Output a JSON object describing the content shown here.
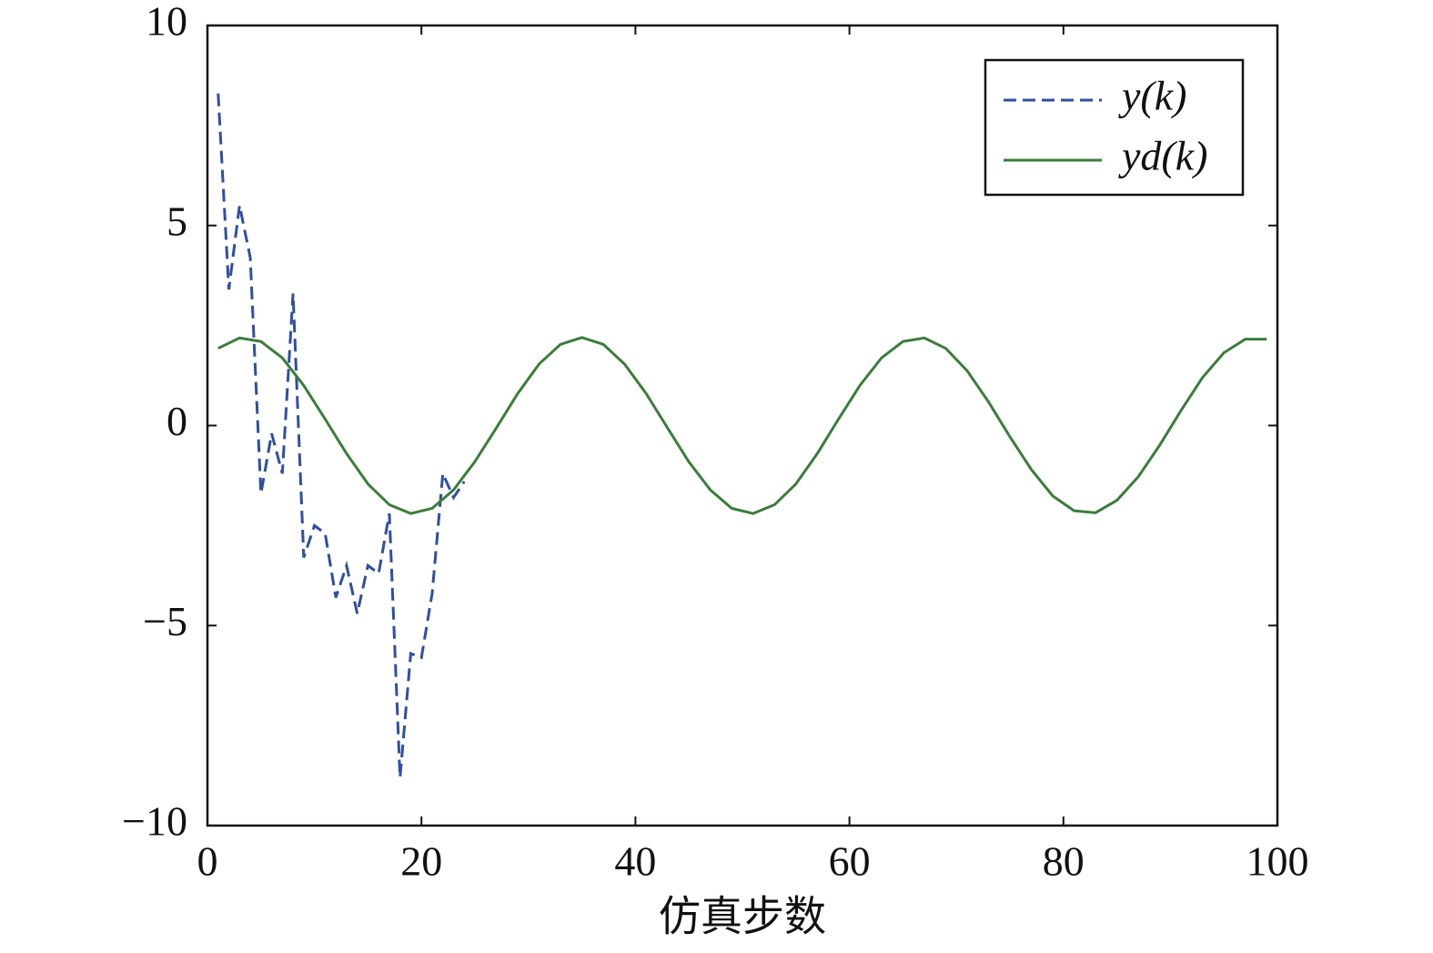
{
  "chart_data": {
    "type": "line",
    "xlabel": "仿真步数",
    "xlim": [
      0,
      100
    ],
    "ylim": [
      -10,
      10
    ],
    "xticks": [
      0,
      20,
      40,
      60,
      80,
      100
    ],
    "yticks": [
      {
        "value": -10,
        "label": "−10"
      },
      {
        "value": -5,
        "label": "−5"
      },
      0,
      5,
      10
    ],
    "legend": "upper right",
    "series": [
      {
        "name": "y(k)",
        "color": "#2f4fa0",
        "dash": true,
        "x": [
          1,
          2,
          3,
          4,
          5,
          6,
          7,
          8,
          9,
          10,
          11,
          12,
          13,
          14,
          15,
          16,
          17,
          18,
          19,
          20,
          21,
          22,
          23,
          24
        ],
        "values": [
          8.3,
          3.4,
          5.5,
          4.2,
          -1.7,
          -0.2,
          -1.2,
          3.3,
          -3.3,
          -2.5,
          -2.7,
          -4.3,
          -3.5,
          -4.7,
          -3.5,
          -3.7,
          -2.2,
          -8.8,
          -5.7,
          -5.8,
          -4.2,
          -1.2,
          -1.8,
          -1.4
        ]
      },
      {
        "name": "yd(k)",
        "color": "#3a7d3a",
        "dash": false,
        "x": [
          1,
          3,
          5,
          7,
          9,
          11,
          13,
          15,
          17,
          19,
          21,
          23,
          25,
          27,
          29,
          31,
          33,
          35,
          37,
          39,
          41,
          43,
          45,
          47,
          49,
          51,
          53,
          55,
          57,
          59,
          61,
          63,
          65,
          67,
          69,
          71,
          73,
          75,
          77,
          79,
          81,
          83,
          85,
          87,
          89,
          91,
          93,
          95,
          97,
          99
        ],
        "values": [
          1.93,
          2.19,
          2.1,
          1.69,
          1.0,
          0.16,
          -0.7,
          -1.46,
          -1.98,
          -2.2,
          -2.07,
          -1.61,
          -0.9,
          -0.06,
          0.8,
          1.54,
          2.03,
          2.2,
          2.03,
          1.53,
          0.8,
          -0.06,
          -0.91,
          -1.61,
          -2.07,
          -2.2,
          -1.98,
          -1.46,
          -0.7,
          0.17,
          1.01,
          1.69,
          2.1,
          2.19,
          1.93,
          1.37,
          0.59,
          -0.28,
          -1.1,
          -1.76,
          -2.13,
          -2.18,
          -1.87,
          -1.28,
          -0.49,
          0.38,
          1.2,
          1.82,
          2.16,
          2.16
        ]
      }
    ]
  }
}
